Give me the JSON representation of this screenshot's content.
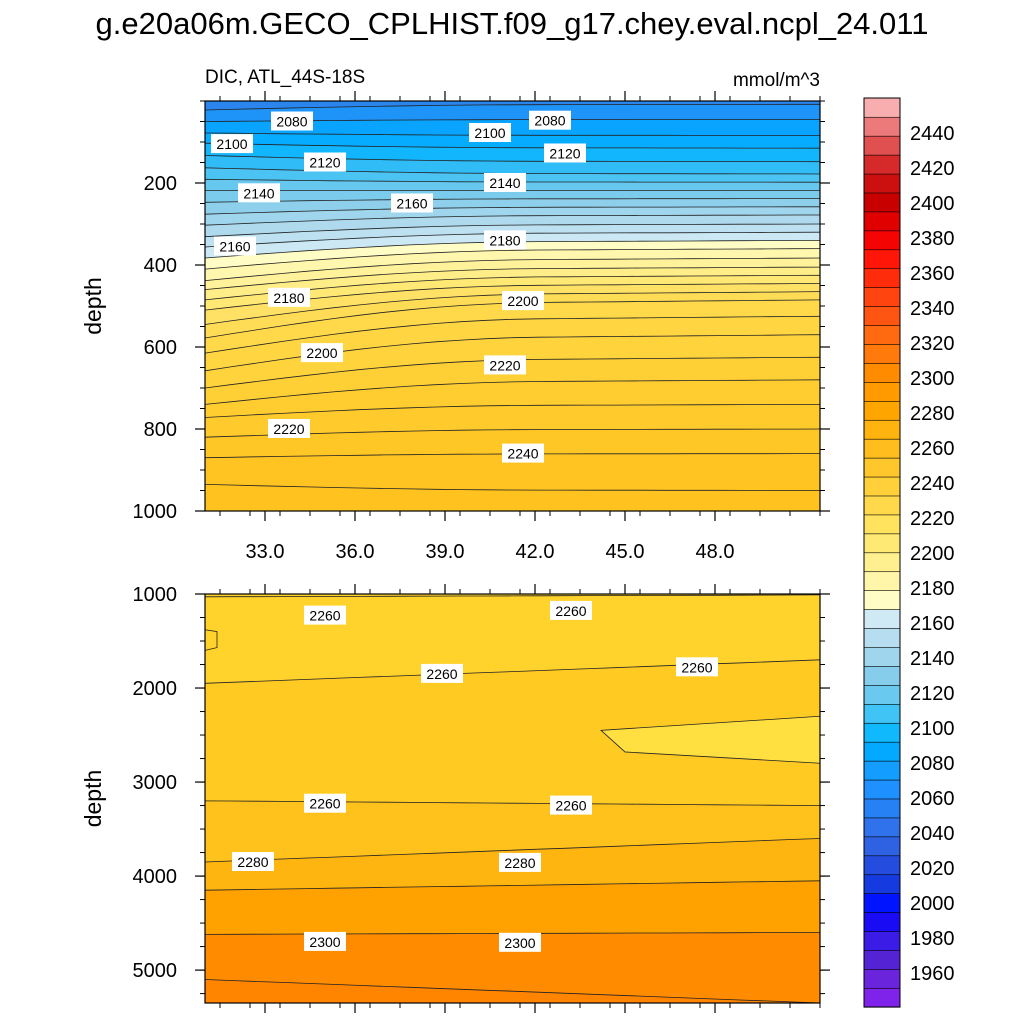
{
  "title": "g.e20a06m.GECO_CPLHIST.f09_g17.chey.eval.ncpl_24.011",
  "chart_data": {
    "type": "contour",
    "variable_label": "DIC, ATL_44S-18S",
    "units": "mmol/m^3",
    "colorbar": {
      "levels": [
        1960,
        1980,
        2000,
        2020,
        2040,
        2060,
        2080,
        2100,
        2120,
        2140,
        2160,
        2180,
        2200,
        2220,
        2240,
        2260,
        2280,
        2300,
        2320,
        2340,
        2360,
        2380,
        2400,
        2420,
        2440
      ],
      "tick_labels": [
        "1960",
        "1980",
        "2000",
        "2020",
        "2040",
        "2060",
        "2080",
        "2100",
        "2120",
        "2140",
        "2160",
        "2180",
        "2200",
        "2220",
        "2240",
        "2260",
        "2280",
        "2300",
        "2320",
        "2340",
        "2360",
        "2380",
        "2400",
        "2420",
        "2440"
      ],
      "colors": [
        "#7f22ea",
        "#6a24dc",
        "#5424d4",
        "#3a1ce6",
        "#1a0bf5",
        "#0014ff",
        "#143ae0",
        "#244cdf",
        "#2e62e3",
        "#2f72ec",
        "#2682f4",
        "#1f90ff",
        "#139eff",
        "#02a9ff",
        "#10b9fc",
        "#40c3f5",
        "#6ac9ef",
        "#86cdec",
        "#9fd5ed",
        "#b7def0",
        "#cfe9f5",
        "#fffcc5",
        "#fff6a9",
        "#fff08f",
        "#ffe975",
        "#ffe35e",
        "#ffd94a",
        "#ffd03a",
        "#ffc72c",
        "#ffbd1e",
        "#ffb30f",
        "#ffa500",
        "#ff9a00",
        "#ff8c00",
        "#ff7a0a",
        "#ff6a10",
        "#ff5512",
        "#ff4410",
        "#ff2c0c",
        "#ff1608",
        "#f50404",
        "#e00000",
        "#c80000",
        "#cc1010",
        "#d62a2a",
        "#e05050",
        "#ec7a7a",
        "#f8aeae"
      ]
    },
    "panels": [
      {
        "name": "upper",
        "ylabel": "depth",
        "ylim": [
          0,
          1000
        ],
        "yticks": [
          200,
          400,
          600,
          800,
          1000
        ],
        "ytick_labels": [
          "200",
          "400",
          "600",
          "800",
          "1000"
        ],
        "xlim": [
          31,
          51.5
        ],
        "xticks": [
          33,
          36,
          39,
          42,
          45,
          48
        ],
        "xtick_labels": [
          "33.0",
          "36.0",
          "39.0",
          "42.0",
          "45.0",
          "48.0"
        ],
        "contour_left_depths": [
          22,
          50,
          78,
          103,
          133,
          163,
          191,
          218,
          247,
          276,
          303,
          331,
          356,
          383,
          410,
          438,
          460,
          485,
          510,
          545,
          578,
          615,
          658,
          700,
          740,
          772,
          820,
          870,
          935
        ],
        "contour_right_depths": [
          8,
          45,
          84,
          115,
          148,
          178,
          198,
          218,
          238,
          258,
          278,
          300,
          320,
          340,
          360,
          383,
          405,
          425,
          445,
          465,
          485,
          525,
          570,
          625,
          680,
          740,
          800,
          860,
          950
        ],
        "contour_labels": [
          {
            "text": "2080",
            "x": 33.9,
            "depth": 50
          },
          {
            "text": "2080",
            "x": 42.5,
            "depth": 48
          },
          {
            "text": "2100",
            "x": 31.9,
            "depth": 105
          },
          {
            "text": "2100",
            "x": 40.5,
            "depth": 78
          },
          {
            "text": "2120",
            "x": 35.0,
            "depth": 150
          },
          {
            "text": "2120",
            "x": 43.0,
            "depth": 128
          },
          {
            "text": "2140",
            "x": 32.8,
            "depth": 225
          },
          {
            "text": "2140",
            "x": 41.0,
            "depth": 200
          },
          {
            "text": "2160",
            "x": 37.9,
            "depth": 250
          },
          {
            "text": "2160",
            "x": 32.0,
            "depth": 355
          },
          {
            "text": "2180",
            "x": 41.0,
            "depth": 340
          },
          {
            "text": "2180",
            "x": 33.8,
            "depth": 480
          },
          {
            "text": "2200",
            "x": 41.6,
            "depth": 488
          },
          {
            "text": "2200",
            "x": 34.9,
            "depth": 615
          },
          {
            "text": "2220",
            "x": 41.0,
            "depth": 645
          },
          {
            "text": "2220",
            "x": 33.8,
            "depth": 800
          },
          {
            "text": "2240",
            "x": 41.6,
            "depth": 860
          }
        ]
      },
      {
        "name": "lower",
        "ylabel": "depth",
        "ylim": [
          1000,
          5350
        ],
        "yticks": [
          1000,
          2000,
          3000,
          4000,
          5000
        ],
        "ytick_labels": [
          "1000",
          "2000",
          "3000",
          "4000",
          "5000"
        ],
        "xlim": [
          31,
          51.5
        ],
        "xticks": [
          33,
          36,
          39,
          42,
          45,
          48
        ],
        "contour_left_depths": [
          1030,
          1950,
          3200,
          3850,
          4150,
          4620,
          5100
        ],
        "contour_right_depths": [
          1010,
          1700,
          3250,
          3600,
          4050,
          4600,
          5350
        ],
        "contour_labels": [
          {
            "text": "2260",
            "x": 35.0,
            "depth": 1230
          },
          {
            "text": "2260",
            "x": 43.2,
            "depth": 1180
          },
          {
            "text": "2260",
            "x": 38.9,
            "depth": 1850
          },
          {
            "text": "2260",
            "x": 47.4,
            "depth": 1780
          },
          {
            "text": "2260",
            "x": 35.0,
            "depth": 3230
          },
          {
            "text": "2260",
            "x": 43.2,
            "depth": 3250
          },
          {
            "text": "2280",
            "x": 32.6,
            "depth": 3850
          },
          {
            "text": "2280",
            "x": 41.5,
            "depth": 3860
          },
          {
            "text": "2300",
            "x": 35.0,
            "depth": 4700
          },
          {
            "text": "2300",
            "x": 41.5,
            "depth": 4710
          }
        ]
      }
    ]
  }
}
